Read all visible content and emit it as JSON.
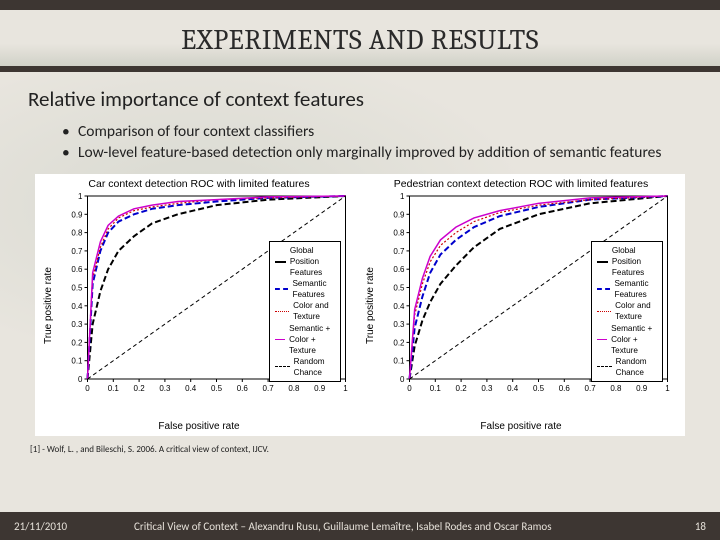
{
  "header": {
    "title": "EXPERIMENTS AND RESULTS"
  },
  "subtitle": "Relative importance of context features",
  "bullets": [
    "Comparison of four context classifiers",
    "Low-level feature-based detection only marginally improved by addition of semantic features"
  ],
  "charts": [
    {
      "title": "Car context detection ROC with limited features",
      "xlabel": "False positive rate",
      "ylabel": "True positive rate",
      "xlim": [
        0,
        1
      ],
      "ylim": [
        0,
        1
      ],
      "tick_step": 0.1,
      "axis_color": "#000000",
      "tick_fontsize": 8,
      "label_fontsize": 10,
      "title_fontsize": 10.5,
      "background_color": "#ffffff",
      "series": [
        {
          "name": "Global Position Features",
          "color": "#000000",
          "dash": "6,3",
          "width": 2,
          "x": [
            0,
            0.02,
            0.05,
            0.08,
            0.12,
            0.18,
            0.25,
            0.35,
            0.5,
            0.7,
            1
          ],
          "y": [
            0,
            0.3,
            0.48,
            0.6,
            0.7,
            0.78,
            0.85,
            0.9,
            0.95,
            0.98,
            1
          ]
        },
        {
          "name": "Semantic Features",
          "color": "#0000cc",
          "dash": "6,3",
          "width": 2,
          "x": [
            0,
            0.02,
            0.05,
            0.08,
            0.12,
            0.18,
            0.25,
            0.35,
            0.5,
            0.7,
            1
          ],
          "y": [
            0,
            0.52,
            0.7,
            0.8,
            0.86,
            0.9,
            0.93,
            0.95,
            0.97,
            0.99,
            1
          ]
        },
        {
          "name": "Color and Texture",
          "color": "#cc0000",
          "dash": "2,2",
          "width": 1.2,
          "x": [
            0,
            0.02,
            0.05,
            0.08,
            0.12,
            0.18,
            0.25,
            0.35,
            0.5,
            0.7,
            1
          ],
          "y": [
            0,
            0.55,
            0.72,
            0.82,
            0.88,
            0.92,
            0.94,
            0.96,
            0.98,
            0.99,
            1
          ]
        },
        {
          "name": "Semantic + Color + Texture",
          "color": "#cc00cc",
          "dash": "",
          "width": 1.5,
          "x": [
            0,
            0.02,
            0.05,
            0.08,
            0.12,
            0.18,
            0.25,
            0.35,
            0.5,
            0.7,
            1
          ],
          "y": [
            0,
            0.58,
            0.75,
            0.84,
            0.89,
            0.93,
            0.95,
            0.97,
            0.98,
            0.995,
            1
          ]
        },
        {
          "name": "Random Chance",
          "color": "#000000",
          "dash": "4,3",
          "width": 1,
          "x": [
            0,
            1
          ],
          "y": [
            0,
            1
          ]
        }
      ]
    },
    {
      "title": "Pedestrian context detection ROC with limited features",
      "xlabel": "False positive rate",
      "ylabel": "True positive rate",
      "xlim": [
        0,
        1
      ],
      "ylim": [
        0,
        1
      ],
      "tick_step": 0.1,
      "axis_color": "#000000",
      "tick_fontsize": 8,
      "label_fontsize": 10,
      "title_fontsize": 10.5,
      "background_color": "#ffffff",
      "series": [
        {
          "name": "Global Position Features",
          "color": "#000000",
          "dash": "6,3",
          "width": 2,
          "x": [
            0,
            0.02,
            0.05,
            0.08,
            0.12,
            0.18,
            0.25,
            0.35,
            0.5,
            0.7,
            1
          ],
          "y": [
            0,
            0.18,
            0.32,
            0.42,
            0.52,
            0.62,
            0.72,
            0.82,
            0.9,
            0.96,
            1
          ]
        },
        {
          "name": "Semantic Features",
          "color": "#0000cc",
          "dash": "6,3",
          "width": 2,
          "x": [
            0,
            0.02,
            0.05,
            0.08,
            0.12,
            0.18,
            0.25,
            0.35,
            0.5,
            0.7,
            1
          ],
          "y": [
            0,
            0.28,
            0.45,
            0.58,
            0.68,
            0.76,
            0.83,
            0.89,
            0.94,
            0.98,
            1
          ]
        },
        {
          "name": "Color and Texture",
          "color": "#cc0000",
          "dash": "2,2",
          "width": 1.2,
          "x": [
            0,
            0.02,
            0.05,
            0.08,
            0.12,
            0.18,
            0.25,
            0.35,
            0.5,
            0.7,
            1
          ],
          "y": [
            0,
            0.35,
            0.52,
            0.64,
            0.73,
            0.8,
            0.86,
            0.91,
            0.95,
            0.98,
            1
          ]
        },
        {
          "name": "Semantic + Color + Texture",
          "color": "#cc00cc",
          "dash": "",
          "width": 1.5,
          "x": [
            0,
            0.02,
            0.05,
            0.08,
            0.12,
            0.18,
            0.25,
            0.35,
            0.5,
            0.7,
            1
          ],
          "y": [
            0,
            0.38,
            0.55,
            0.67,
            0.76,
            0.83,
            0.88,
            0.92,
            0.96,
            0.99,
            1
          ]
        },
        {
          "name": "Random Chance",
          "color": "#000000",
          "dash": "4,3",
          "width": 1,
          "x": [
            0,
            1
          ],
          "y": [
            0,
            1
          ]
        }
      ]
    }
  ],
  "citation": "[1] - Wolf, L. , and Bileschi, S. 2006. A critical view of context, IJCV.",
  "footer": {
    "date": "21/11/2010",
    "title": "Critical View of Context – Alexandru Rusu, Guillaume Lemaître, Isabel Rodes and Oscar Ramos",
    "page": "18"
  }
}
